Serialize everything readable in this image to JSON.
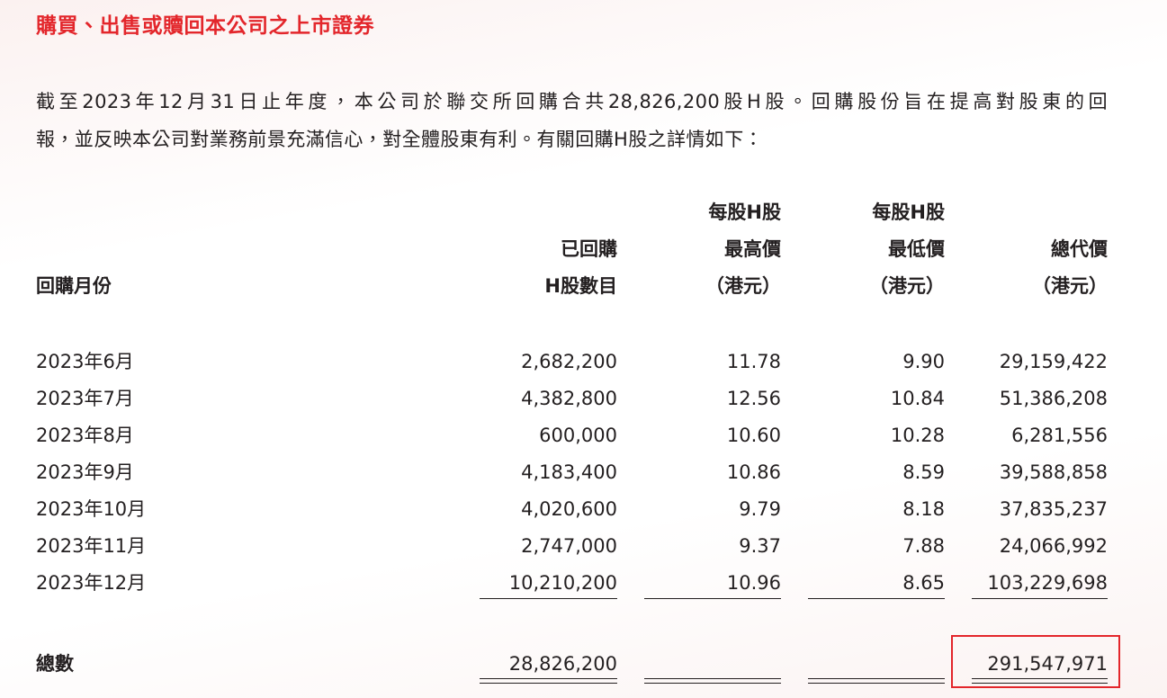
{
  "header": {
    "title": "購買、出售或贖回本公司之上市證券"
  },
  "intro": {
    "lines": [
      "截至2023年12月31日止年度，本公司於聯交所回購合共28,826,200股H股。回購股份旨在提高對股東的回",
      "報，並反映本公司對業務前景充滿信心，對全體股東有利。有關回購H股之詳情如下："
    ]
  },
  "table": {
    "columns": [
      [
        "回購月份"
      ],
      [
        "已回購",
        "H股數目"
      ],
      [
        "每股H股",
        "最高價",
        "（港元）"
      ],
      [
        "每股H股",
        "最低價",
        "（港元）"
      ],
      [
        "總代價",
        "（港元）"
      ]
    ],
    "rows": [
      [
        "2023年6月",
        "2,682,200",
        "11.78",
        "9.90",
        "29,159,422"
      ],
      [
        "2023年7月",
        "4,382,800",
        "12.56",
        "10.84",
        "51,386,208"
      ],
      [
        "2023年8月",
        "600,000",
        "10.60",
        "10.28",
        "6,281,556"
      ],
      [
        "2023年9月",
        "4,183,400",
        "10.86",
        "8.59",
        "39,588,858"
      ],
      [
        "2023年10月",
        "4,020,600",
        "9.79",
        "8.18",
        "37,835,237"
      ],
      [
        "2023年11月",
        "2,747,000",
        "9.37",
        "7.88",
        "24,066,992"
      ],
      [
        "2023年12月",
        "10,210,200",
        "10.96",
        "8.65",
        "103,229,698"
      ]
    ],
    "total": {
      "label": "總數",
      "shares": "28,826,200",
      "consideration": "291,547,971"
    }
  }
}
